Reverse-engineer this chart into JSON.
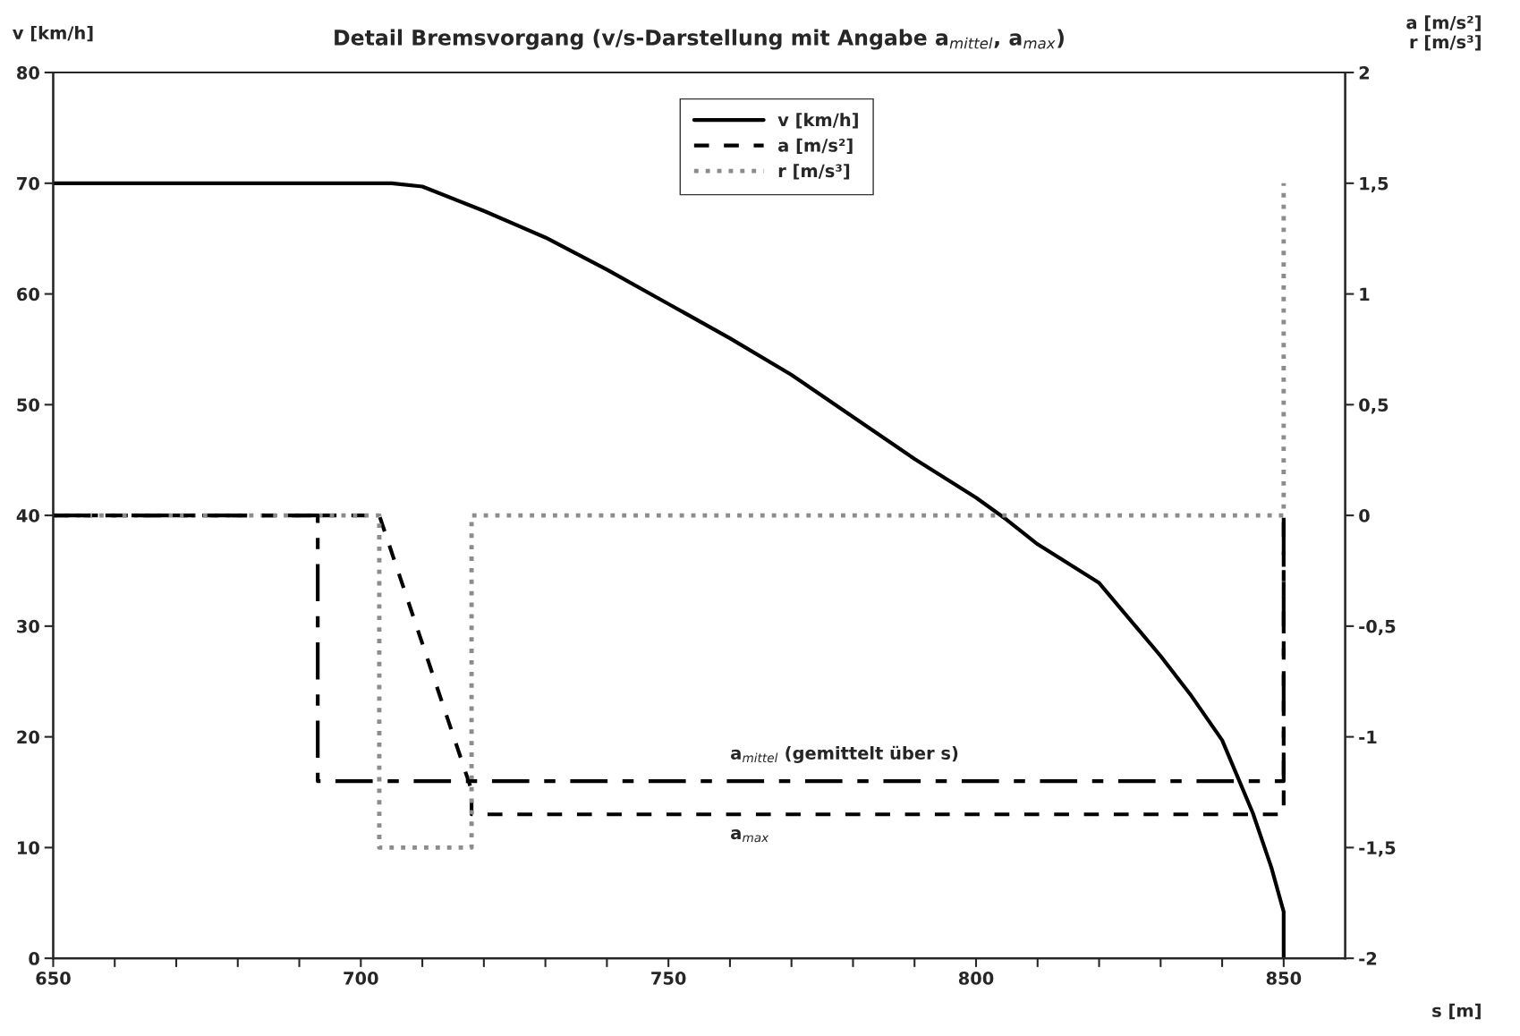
{
  "chart_data": {
    "type": "line",
    "title": "Detail Bremsvorgang (v/s-Darstellung mit Angabe a$_{mittel}$, a$_{max}$)",
    "xlabel": "s [m]",
    "ylabel": "v [km/h]",
    "y2label": "a [m/s²]\nr [m/s³]",
    "xlim": [
      650,
      860
    ],
    "xticks": [
      650,
      {
        "value": 660,
        "label": null
      },
      {
        "value": 670,
        "label": null
      },
      {
        "value": 680,
        "label": null
      },
      {
        "value": 690,
        "label": null
      },
      700,
      {
        "value": 710,
        "label": null
      },
      {
        "value": 720,
        "label": null
      },
      {
        "value": 730,
        "label": null
      },
      {
        "value": 740,
        "label": null
      },
      750,
      {
        "value": 760,
        "label": null
      },
      {
        "value": 770,
        "label": null
      },
      {
        "value": 780,
        "label": null
      },
      {
        "value": 790,
        "label": null
      },
      800,
      {
        "value": 810,
        "label": null
      },
      {
        "value": 820,
        "label": null
      },
      {
        "value": 830,
        "label": null
      },
      {
        "value": 840,
        "label": null
      },
      850
    ],
    "ylim": [
      0,
      80
    ],
    "yticks": [
      0,
      10,
      20,
      30,
      40,
      50,
      60,
      70,
      80
    ],
    "y2lim": [
      -2,
      2
    ],
    "y2ticks": [
      -2,
      {
        "value": -1.5,
        "label": "-1,5"
      },
      -1,
      {
        "value": -0.5,
        "label": "-0,5"
      },
      0,
      {
        "value": 0.5,
        "label": "0,5"
      },
      1,
      {
        "value": 1.5,
        "label": "1,5"
      },
      2
    ],
    "grid": false,
    "legend": "top",
    "series": [
      {
        "name": "v [km/h]",
        "color": "#000000",
        "line_style": "solid",
        "x": [
          650,
          705,
          710,
          720,
          730,
          740,
          750,
          760,
          770,
          780,
          790,
          800,
          805,
          810,
          820,
          830,
          835,
          840,
          845,
          848,
          850,
          850
        ],
        "values": [
          70,
          70,
          69.7,
          67.5,
          65.1,
          62.2,
          59.1,
          56,
          52.7,
          48.9,
          45.1,
          41.6,
          39.6,
          37.4,
          33.9,
          27.3,
          23.7,
          19.7,
          13.1,
          8.2,
          4.2,
          0
        ]
      },
      {
        "name": "a [m/s²]",
        "color": "#000000",
        "line_style": "dashed",
        "axis": "y2",
        "x": [
          650,
          703,
          718,
          718,
          850,
          850
        ],
        "values": [
          0,
          0,
          -1.24,
          -1.35,
          -1.35,
          0
        ]
      },
      {
        "name": "r [m/s³]",
        "color": "#8c8c8c",
        "line_style": "dotted",
        "axis": "y2",
        "x": [
          650,
          703,
          703,
          718,
          718,
          850,
          850
        ],
        "values": [
          0,
          0,
          -1.5,
          -1.5,
          0,
          0,
          1.5
        ]
      },
      {
        "color": "#000000",
        "line_style": "dashdot",
        "axis": "y2",
        "x": [
          650,
          693,
          693,
          850,
          850
        ],
        "values": [
          0,
          0,
          -1.2,
          -1.2,
          0
        ]
      }
    ],
    "annotations": [
      "a$_{mittel}$ (gemittelt über s)",
      "a$_{max}$"
    ]
  }
}
